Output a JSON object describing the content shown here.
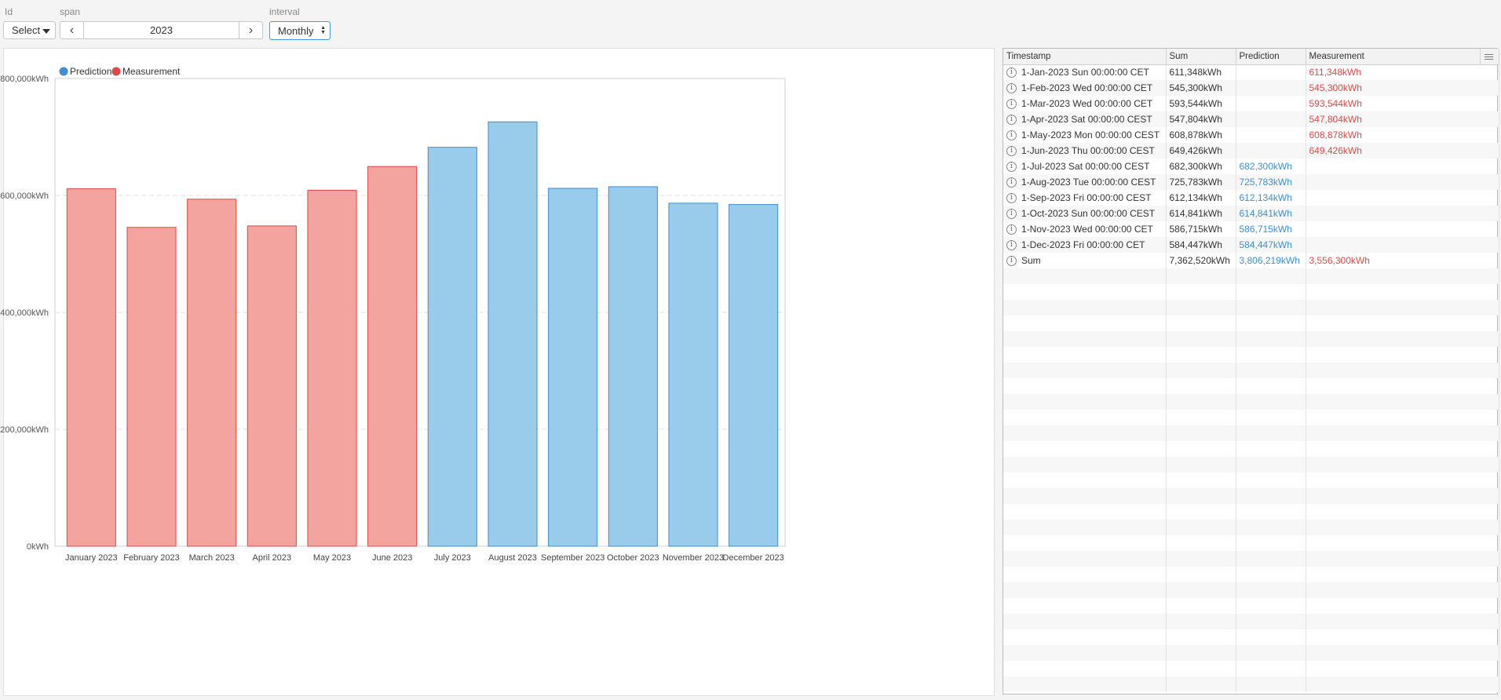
{
  "controls": {
    "id_label": "Id",
    "id_select": "Select",
    "span_label": "span",
    "span_value": "2023",
    "prev_icon": "chevron-left-icon",
    "next_icon": "chevron-right-icon",
    "interval_label": "interval",
    "interval_value": "Monthly"
  },
  "colors": {
    "prediction_fill": "#99cbeb",
    "prediction_stroke": "#3f8fd2",
    "measurement_fill": "#f4a49e",
    "measurement_stroke": "#e04848"
  },
  "chart_data": {
    "type": "bar",
    "categories": [
      "January 2023",
      "February 2023",
      "March 2023",
      "April 2023",
      "May 2023",
      "June 2023",
      "July 2023",
      "August 2023",
      "September 2023",
      "October 2023",
      "November 2023",
      "December 2023"
    ],
    "series": [
      {
        "name": "Prediction",
        "values": [
          null,
          null,
          null,
          null,
          null,
          null,
          682300,
          725783,
          612134,
          614841,
          586715,
          584447
        ]
      },
      {
        "name": "Measurement",
        "values": [
          611348,
          545300,
          593544,
          547804,
          608878,
          649426,
          null,
          null,
          null,
          null,
          null,
          null
        ]
      }
    ],
    "ylim": [
      0,
      800000
    ],
    "yticks": [
      "0kWh",
      "200,000kWh",
      "400,000kWh",
      "600,000kWh",
      "800,000kWh"
    ],
    "legend": "top-left",
    "grid": true
  },
  "table": {
    "headers": [
      "Timestamp",
      "Sum",
      "Prediction",
      "Measurement"
    ],
    "rows": [
      {
        "ts": "1-Jan-2023 Sun 00:00:00 CET",
        "sum": "611,348kWh",
        "pred": "",
        "meas": "611,348kWh"
      },
      {
        "ts": "1-Feb-2023 Wed 00:00:00 CET",
        "sum": "545,300kWh",
        "pred": "",
        "meas": "545,300kWh"
      },
      {
        "ts": "1-Mar-2023 Wed 00:00:00 CET",
        "sum": "593,544kWh",
        "pred": "",
        "meas": "593,544kWh"
      },
      {
        "ts": "1-Apr-2023 Sat 00:00:00 CEST",
        "sum": "547,804kWh",
        "pred": "",
        "meas": "547,804kWh"
      },
      {
        "ts": "1-May-2023 Mon 00:00:00 CEST",
        "sum": "608,878kWh",
        "pred": "",
        "meas": "608,878kWh"
      },
      {
        "ts": "1-Jun-2023 Thu 00:00:00 CEST",
        "sum": "649,426kWh",
        "pred": "",
        "meas": "649,426kWh"
      },
      {
        "ts": "1-Jul-2023 Sat 00:00:00 CEST",
        "sum": "682,300kWh",
        "pred": "682,300kWh",
        "meas": ""
      },
      {
        "ts": "1-Aug-2023 Tue 00:00:00 CEST",
        "sum": "725,783kWh",
        "pred": "725,783kWh",
        "meas": ""
      },
      {
        "ts": "1-Sep-2023 Fri 00:00:00 CEST",
        "sum": "612,134kWh",
        "pred": "612,134kWh",
        "meas": ""
      },
      {
        "ts": "1-Oct-2023 Sun 00:00:00 CEST",
        "sum": "614,841kWh",
        "pred": "614,841kWh",
        "meas": ""
      },
      {
        "ts": "1-Nov-2023 Wed 00:00:00 CET",
        "sum": "586,715kWh",
        "pred": "586,715kWh",
        "meas": ""
      },
      {
        "ts": "1-Dec-2023 Fri 00:00:00 CET",
        "sum": "584,447kWh",
        "pred": "584,447kWh",
        "meas": ""
      },
      {
        "ts": "Sum",
        "sum": "7,362,520kWh",
        "pred": "3,806,219kWh",
        "meas": "3,556,300kWh"
      }
    ],
    "info_icon": "info-icon",
    "menu_icon": "column-menu-icon"
  }
}
